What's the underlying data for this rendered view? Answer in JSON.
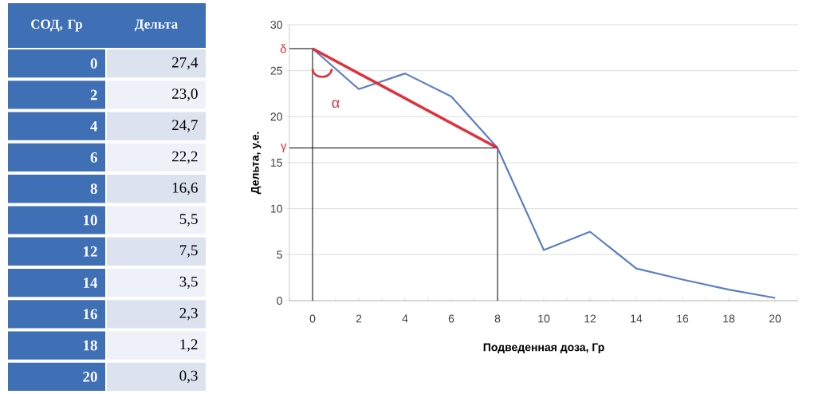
{
  "chart_data": [
    {
      "type": "heatmap",
      "ylabel": "СОД, Гр",
      "categories": [
        "Дельта"
      ],
      "y_categories": [
        "0",
        "2",
        "4",
        "6",
        "8",
        "10",
        "12",
        "14",
        "16",
        "18",
        "20"
      ],
      "cells": [
        [
          27.4
        ],
        [
          23.0
        ],
        [
          24.7
        ],
        [
          22.2
        ],
        [
          16.6
        ],
        [
          5.5
        ],
        [
          7.5
        ],
        [
          3.5
        ],
        [
          2.3
        ],
        [
          1.2
        ],
        [
          0.3
        ]
      ],
      "cell_labels": [
        [
          "27,4"
        ],
        [
          "23,0"
        ],
        [
          "24,7"
        ],
        [
          "22,2"
        ],
        [
          "16,6"
        ],
        [
          "5,5"
        ],
        [
          "7,5"
        ],
        [
          "3,5"
        ],
        [
          "2,3"
        ],
        [
          "1,2"
        ],
        [
          "0,3"
        ]
      ]
    },
    {
      "type": "line",
      "xlabel": "Подведенная доза, Гр",
      "ylabel": "Дельта, у.е.",
      "x": [
        0,
        2,
        4,
        6,
        8,
        10,
        12,
        14,
        16,
        18,
        20
      ],
      "series": [
        {
          "color": "#5b7fc4",
          "values": [
            27.4,
            23.0,
            24.7,
            22.2,
            16.6,
            5.5,
            7.5,
            3.5,
            2.3,
            1.2,
            0.3
          ]
        },
        {
          "type": "line",
          "color": "#e0303a",
          "x": [
            0,
            8
          ],
          "values": [
            27.4,
            16.6
          ]
        }
      ],
      "xlim": [
        -1,
        21
      ],
      "xticks": [
        {
          "value": -1,
          "label": null
        },
        0,
        {
          "value": 1,
          "label": null
        },
        2,
        {
          "value": 3,
          "label": null
        },
        4,
        {
          "value": 5,
          "label": null
        },
        6,
        {
          "value": 7,
          "label": null
        },
        8,
        {
          "value": 9,
          "label": null
        },
        10,
        {
          "value": 11,
          "label": null
        },
        12,
        {
          "value": 13,
          "label": null
        },
        14,
        {
          "value": 15,
          "label": null
        },
        16,
        {
          "value": 17,
          "label": null
        },
        18,
        {
          "value": 19,
          "label": null
        },
        20,
        {
          "value": 21,
          "label": null
        }
      ],
      "ylim": [
        0,
        30
      ],
      "yticks": [
        0,
        5,
        10,
        15,
        20,
        25,
        30
      ],
      "grid": "y",
      "ref_lines": [
        {
          "axis": "y",
          "value": 27.4,
          "label": "δ",
          "color": "#000000"
        },
        {
          "axis": "y",
          "value": 16.6,
          "label": "γ",
          "color": "#000000"
        },
        {
          "axis": "x",
          "value": 0,
          "color": "#000000"
        },
        {
          "axis": "x",
          "value": 8,
          "color": "#000000"
        }
      ],
      "annotations": [
        "α"
      ]
    }
  ]
}
